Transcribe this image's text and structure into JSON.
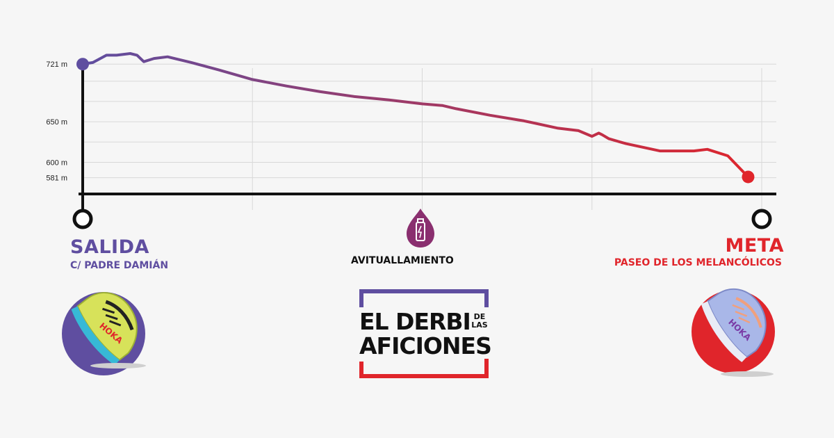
{
  "colors": {
    "start": "#5f4ea0",
    "finish": "#e0252b",
    "axis": "#111111",
    "grid": "#d8d8d8",
    "background": "#f6f6f6"
  },
  "chart_data": {
    "type": "line",
    "title": "",
    "xlabel": "",
    "ylabel": "",
    "y_tick_labels": [
      "721 m",
      "650 m",
      "600 m",
      "581 m"
    ],
    "y_ticks": [
      721,
      650,
      600,
      581
    ],
    "ylim": [
      561,
      800
    ],
    "xlim": [
      0,
      100
    ],
    "grid": true,
    "x": [
      0,
      1.5,
      3.5,
      5,
      7,
      8,
      9,
      10.5,
      12.5,
      16,
      20,
      25,
      30,
      35,
      40,
      45,
      50,
      53,
      55,
      60,
      65,
      70,
      73,
      75,
      76,
      76.5,
      77.5,
      80,
      85,
      90,
      92,
      95,
      98
    ],
    "series": [
      {
        "name": "",
        "values": [
          721,
          723,
          732,
          732,
          734,
          732,
          724,
          728,
          730,
          723,
          714,
          702,
          694,
          687,
          681,
          677,
          672,
          670,
          666,
          658,
          651,
          642,
          639,
          632,
          636,
          634,
          629,
          623,
          614,
          614,
          616,
          608,
          582
        ]
      }
    ]
  },
  "labels": {
    "start_title": "SALIDA",
    "start_sub": "C/ PADRE DAMIÁN",
    "aid": "AVITUALLAMIENTO",
    "finish_title": "META",
    "finish_sub": "PASEO DE LOS MELANCÓLICOS"
  },
  "icons": {
    "aid_station": "water-bottle-drop-icon",
    "start_shoe": "running-shoe-icon",
    "finish_shoe": "running-shoe-icon"
  },
  "logo": {
    "line1": "EL DERBI",
    "line1_small_top": "DE",
    "line1_small_bottom": "LAS",
    "line2": "AFICIONES"
  },
  "shoes": {
    "start_brand": "HOKA",
    "finish_brand": "HOKA"
  }
}
